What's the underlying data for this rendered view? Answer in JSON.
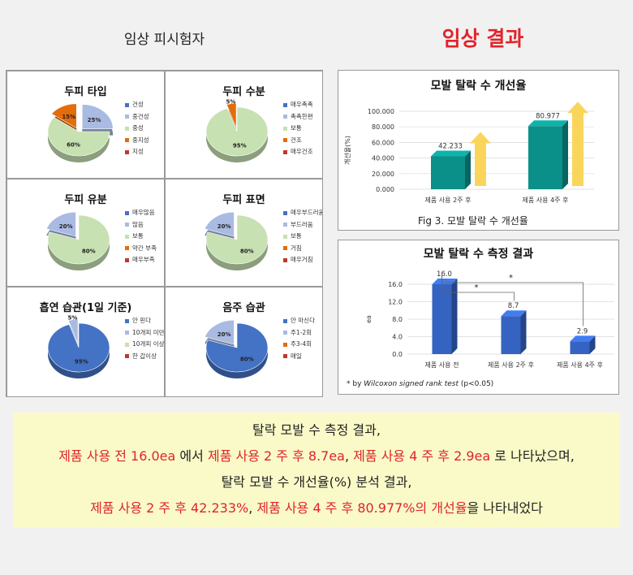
{
  "header": {
    "left_title": "임상 피시험자",
    "right_title": "임상 결과"
  },
  "colors": {
    "accent_red": "#e0242b",
    "teal": "#0b9089",
    "blue": "#3463c2",
    "arrow": "#f9d65b",
    "pie_green": "#c7e1b2",
    "pie_blue": "#a9bbe2",
    "pie_orange": "#e46c0a",
    "pie_darkblue": "#4472c4"
  },
  "pies": [
    {
      "title": "두피 타입",
      "legend": [
        "건성",
        "중건성",
        "중성",
        "중지성",
        "지성"
      ],
      "legend_colors": [
        "#4472c4",
        "#a9bbe2",
        "#c7e1b2",
        "#e46c0a",
        "#c0392b"
      ],
      "slices": [
        {
          "value": 15,
          "label": "15%",
          "color": "#e46c0a",
          "explode": true
        },
        {
          "value": 25,
          "label": "25%",
          "color": "#a9bbe2",
          "explode": true
        },
        {
          "value": 60,
          "label": "60%",
          "color": "#c7e1b2",
          "explode": false
        }
      ]
    },
    {
      "title": "두피 수분",
      "legend": [
        "매우촉촉",
        "촉촉한편",
        "보통",
        "건조",
        "매우건조"
      ],
      "legend_colors": [
        "#4472c4",
        "#a9bbe2",
        "#c7e1b2",
        "#e46c0a",
        "#c0392b"
      ],
      "slices": [
        {
          "value": 5,
          "label": "5%",
          "color": "#e46c0a",
          "explode": true
        },
        {
          "value": 95,
          "label": "95%",
          "color": "#c7e1b2",
          "explode": false
        }
      ]
    },
    {
      "title": "두피 유분",
      "legend": [
        "매우많음",
        "많음",
        "보통",
        "약간 부족",
        "매우부족"
      ],
      "legend_colors": [
        "#4472c4",
        "#a9bbe2",
        "#c7e1b2",
        "#e46c0a",
        "#c0392b"
      ],
      "slices": [
        {
          "value": 20,
          "label": "20%",
          "color": "#a9bbe2",
          "explode": true
        },
        {
          "value": 80,
          "label": "80%",
          "color": "#c7e1b2",
          "explode": false
        }
      ]
    },
    {
      "title": "두피 표면",
      "legend": [
        "매우부드러움",
        "부드러움",
        "보통",
        "거침",
        "매우거침"
      ],
      "legend_colors": [
        "#4472c4",
        "#a9bbe2",
        "#c7e1b2",
        "#e46c0a",
        "#c0392b"
      ],
      "slices": [
        {
          "value": 20,
          "label": "20%",
          "color": "#a9bbe2",
          "explode": true
        },
        {
          "value": 80,
          "label": "80%",
          "color": "#c7e1b2",
          "explode": false
        }
      ]
    },
    {
      "title": "흡연 습관(1일 기준)",
      "legend": [
        "안 핀다",
        "10개피 미만",
        "10개피 이상",
        "한 갑이상"
      ],
      "legend_colors": [
        "#4472c4",
        "#a9bbe2",
        "#c7e1b2",
        "#c0392b"
      ],
      "slices": [
        {
          "value": 5,
          "label": "5%",
          "color": "#a9bbe2",
          "explode": true
        },
        {
          "value": 95,
          "label": "95%",
          "color": "#4472c4",
          "explode": false
        }
      ]
    },
    {
      "title": "음주 습관",
      "legend": [
        "안 마신다",
        "주1-2회",
        "주3-4회",
        "매일"
      ],
      "legend_colors": [
        "#4472c4",
        "#a9bbe2",
        "#e46c0a",
        "#c0392b"
      ],
      "slices": [
        {
          "value": 20,
          "label": "20%",
          "color": "#a9bbe2",
          "explode": true
        },
        {
          "value": 80,
          "label": "80%",
          "color": "#4472c4",
          "explode": false
        }
      ]
    }
  ],
  "chart_data": [
    {
      "type": "bar",
      "title": "모발 탈락 수 개선율",
      "ylabel": "개선율(%)",
      "categories": [
        "제품 사용 2주 후",
        "제품 사용 4주 후"
      ],
      "values": [
        42.233,
        80.977
      ],
      "ylim": [
        0,
        100
      ],
      "yticks": [
        "0.000",
        "20.000",
        "40.000",
        "60.000",
        "80.000",
        "100.000"
      ],
      "data_labels": [
        "42.233",
        "80.977"
      ],
      "caption": "Fig 3.  모발 탈락 수 개선율"
    },
    {
      "type": "bar",
      "title": "모발 탈락 수 측정 결과",
      "ylabel": "ea",
      "categories": [
        "제품 사용 전",
        "제품 사용 2주 후",
        "제품 사용 4주 후"
      ],
      "values": [
        16.0,
        8.7,
        2.9
      ],
      "ylim": [
        0,
        16
      ],
      "yticks": [
        "0.0",
        "4.0",
        "8.0",
        "12.0",
        "16.0"
      ],
      "data_labels": [
        "16.0",
        "8.7",
        "2.9"
      ],
      "significance": [
        "*",
        "*"
      ],
      "note_prefix": "* by ",
      "note_test": "Wilcoxon signed rank test",
      "note_suffix": " (p<0.05)"
    }
  ],
  "summary": {
    "line1": "탈락 모발 수 측정 결과,",
    "line2": [
      {
        "t": "제품 사용 전 16.0ea",
        "red": true
      },
      {
        "t": " 에서 ",
        "red": false
      },
      {
        "t": "제품 사용 2 주 후 8.7ea",
        "red": true
      },
      {
        "t": ", ",
        "red": false
      },
      {
        "t": "제품 사용 4 주 후 2.9ea",
        "red": true
      },
      {
        "t": " 로 나타났으며,",
        "red": false
      }
    ],
    "line3": "탈락 모발 수 개선율(%) 분석 결과,",
    "line4": [
      {
        "t": "제품 사용 2 주 후 42.233%",
        "red": true
      },
      {
        "t": ", ",
        "red": false
      },
      {
        "t": "제품 사용 4 주 후 80.977%의 개선율",
        "red": true
      },
      {
        "t": "을 나타내었다",
        "red": false
      }
    ]
  }
}
